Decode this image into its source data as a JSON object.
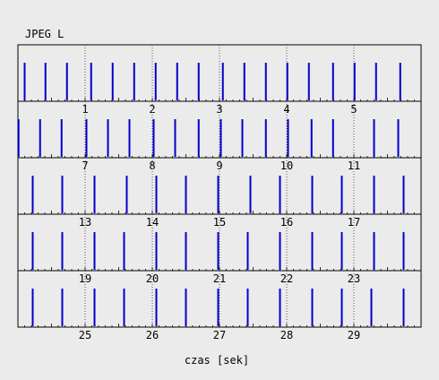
{
  "chart_data": {
    "type": "timeline",
    "title": "JPEG L",
    "xlabel": "czas [sek]",
    "ylabel": "",
    "grid": "dotted vertical lines at each second",
    "colors": {
      "frame": "#0000cc",
      "grid": "#555555",
      "background": "#ebebeb"
    },
    "rows": [
      {
        "x_range": [
          0,
          6
        ],
        "tick_labels": [
          {
            "t": 1,
            "label": "1"
          },
          {
            "t": 2,
            "label": "2"
          },
          {
            "t": 3,
            "label": "3"
          },
          {
            "t": 4,
            "label": "4"
          },
          {
            "t": 5,
            "label": "5"
          }
        ],
        "frames": [
          0.1,
          0.41,
          0.73,
          1.09,
          1.41,
          1.73,
          2.05,
          2.37,
          2.69,
          3.05,
          3.37,
          3.69,
          4.01,
          4.33,
          4.69,
          5.01,
          5.33,
          5.69
        ]
      },
      {
        "x_range": [
          6,
          12
        ],
        "tick_labels": [
          {
            "t": 7,
            "label": "7"
          },
          {
            "t": 8,
            "label": "8"
          },
          {
            "t": 9,
            "label": "9"
          },
          {
            "t": 10,
            "label": "10"
          },
          {
            "t": 11,
            "label": "11"
          }
        ],
        "frames": [
          6.01,
          6.33,
          6.65,
          7.02,
          7.34,
          7.66,
          8.02,
          8.34,
          8.69,
          9.02,
          9.34,
          9.69,
          10.02,
          10.37,
          10.69,
          11.3,
          11.66
        ]
      },
      {
        "x_range": [
          12,
          18
        ],
        "tick_labels": [
          {
            "t": 13,
            "label": "13"
          },
          {
            "t": 14,
            "label": "14"
          },
          {
            "t": 15,
            "label": "15"
          },
          {
            "t": 16,
            "label": "16"
          },
          {
            "t": 17,
            "label": "17"
          }
        ],
        "frames": [
          12.22,
          12.66,
          13.14,
          13.62,
          14.06,
          14.5,
          14.98,
          15.46,
          15.9,
          16.38,
          16.82,
          17.3,
          17.74
        ]
      },
      {
        "x_range": [
          18,
          24
        ],
        "tick_labels": [
          {
            "t": 19,
            "label": "19"
          },
          {
            "t": 20,
            "label": "20"
          },
          {
            "t": 21,
            "label": "21"
          },
          {
            "t": 22,
            "label": "22"
          },
          {
            "t": 23,
            "label": "23"
          }
        ],
        "frames": [
          18.22,
          18.66,
          19.14,
          19.58,
          20.06,
          20.5,
          20.98,
          21.42,
          21.9,
          22.38,
          22.82,
          23.3,
          23.74
        ]
      },
      {
        "x_range": [
          24,
          30
        ],
        "tick_labels": [
          {
            "t": 25,
            "label": "25"
          },
          {
            "t": 26,
            "label": "26"
          },
          {
            "t": 27,
            "label": "27"
          },
          {
            "t": 28,
            "label": "28"
          },
          {
            "t": 29,
            "label": "29"
          }
        ],
        "frames": [
          24.22,
          24.66,
          25.14,
          25.58,
          26.06,
          26.5,
          26.98,
          27.42,
          27.9,
          28.38,
          28.82,
          29.26,
          29.74
        ]
      }
    ]
  }
}
